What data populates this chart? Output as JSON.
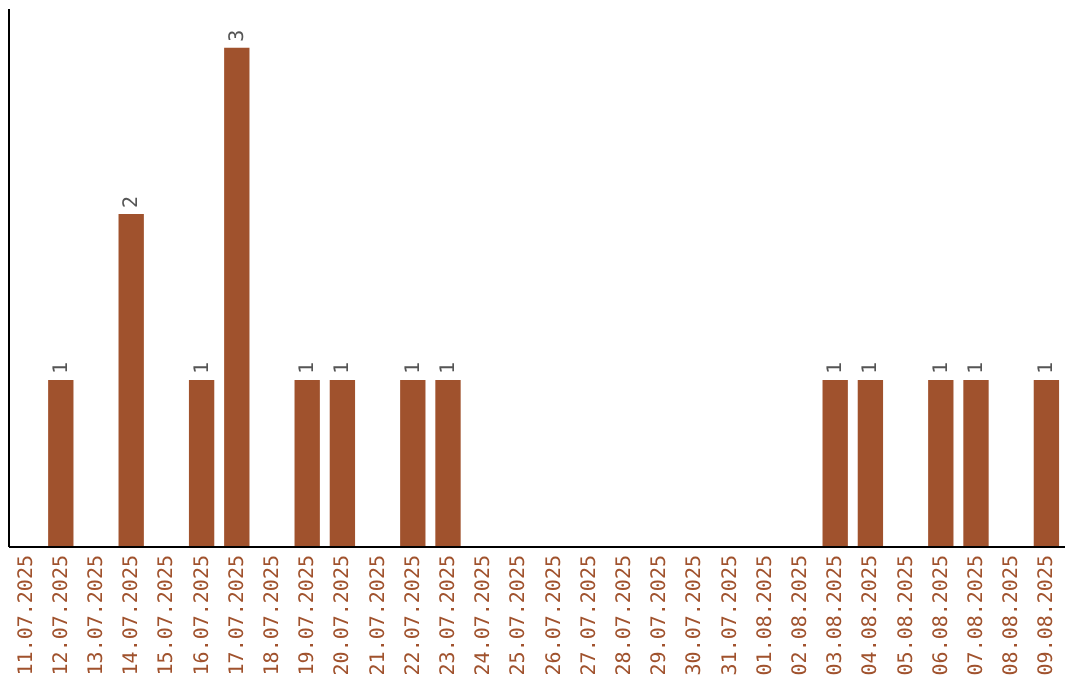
{
  "chart_data": {
    "type": "bar",
    "categories": [
      "11.07.2025",
      "12.07.2025",
      "13.07.2025",
      "14.07.2025",
      "15.07.2025",
      "16.07.2025",
      "17.07.2025",
      "18.07.2025",
      "19.07.2025",
      "20.07.2025",
      "21.07.2025",
      "22.07.2025",
      "23.07.2025",
      "24.07.2025",
      "25.07.2025",
      "26.07.2025",
      "27.07.2025",
      "28.07.2025",
      "29.07.2025",
      "30.07.2025",
      "31.07.2025",
      "01.08.2025",
      "02.08.2025",
      "03.08.2025",
      "04.08.2025",
      "05.08.2025",
      "06.08.2025",
      "07.08.2025",
      "08.08.2025",
      "09.08.2025"
    ],
    "values": [
      0,
      1,
      0,
      2,
      0,
      1,
      3,
      0,
      1,
      1,
      0,
      1,
      1,
      0,
      0,
      0,
      0,
      0,
      0,
      0,
      0,
      0,
      0,
      1,
      1,
      0,
      1,
      1,
      0,
      1
    ],
    "value_labels": [
      null,
      "1",
      null,
      "2",
      null,
      "1",
      "3",
      null,
      "1",
      "1",
      null,
      "1",
      "1",
      null,
      null,
      null,
      null,
      null,
      null,
      null,
      null,
      null,
      null,
      "1",
      "1",
      null,
      "1",
      "1",
      null,
      "1"
    ],
    "color": "#a0522d"
  }
}
